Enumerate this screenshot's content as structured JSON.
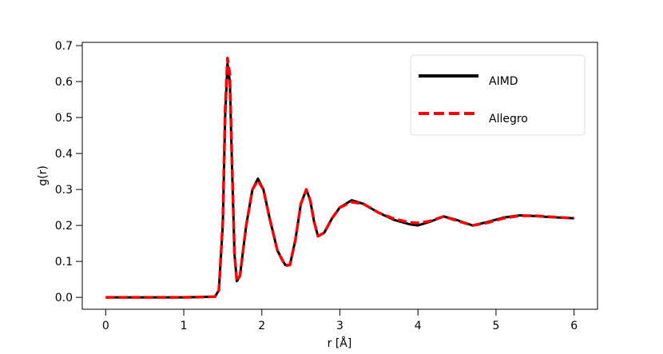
{
  "chart_data": {
    "type": "line",
    "xlabel": "r [Å]",
    "ylabel": "g(r)",
    "x": [
      0,
      0.5,
      1.0,
      1.4,
      1.45,
      1.5,
      1.53,
      1.56,
      1.59,
      1.62,
      1.65,
      1.68,
      1.72,
      1.8,
      1.88,
      1.95,
      2.02,
      2.1,
      2.2,
      2.3,
      2.36,
      2.43,
      2.5,
      2.57,
      2.62,
      2.67,
      2.72,
      2.8,
      2.9,
      3.0,
      3.15,
      3.3,
      3.5,
      3.7,
      3.9,
      4.0,
      4.15,
      4.33,
      4.5,
      4.7,
      4.9,
      5.1,
      5.3,
      5.5,
      5.7,
      6.0
    ],
    "series": [
      {
        "name": "AIMD",
        "color": "#000000",
        "dash": false,
        "values": [
          0,
          0,
          0,
          0.002,
          0.02,
          0.2,
          0.5,
          0.65,
          0.6,
          0.35,
          0.12,
          0.045,
          0.06,
          0.2,
          0.3,
          0.33,
          0.3,
          0.22,
          0.13,
          0.09,
          0.09,
          0.16,
          0.26,
          0.3,
          0.27,
          0.21,
          0.17,
          0.18,
          0.22,
          0.25,
          0.27,
          0.26,
          0.235,
          0.215,
          0.203,
          0.2,
          0.21,
          0.225,
          0.215,
          0.2,
          0.21,
          0.222,
          0.228,
          0.226,
          0.223,
          0.22
        ]
      },
      {
        "name": "Allegro",
        "color": "#ff0000",
        "dash": true,
        "values": [
          0,
          0,
          0,
          0.002,
          0.02,
          0.21,
          0.52,
          0.665,
          0.62,
          0.36,
          0.12,
          0.045,
          0.06,
          0.2,
          0.3,
          0.325,
          0.3,
          0.22,
          0.13,
          0.088,
          0.09,
          0.16,
          0.26,
          0.3,
          0.27,
          0.21,
          0.17,
          0.18,
          0.22,
          0.25,
          0.265,
          0.26,
          0.235,
          0.218,
          0.208,
          0.207,
          0.212,
          0.225,
          0.213,
          0.2,
          0.208,
          0.22,
          0.227,
          0.227,
          0.224,
          0.22
        ]
      }
    ],
    "xlim": [
      -0.3,
      6.3
    ],
    "xticks": [
      0,
      1,
      2,
      3,
      4,
      5,
      6
    ],
    "ylim": [
      -0.033,
      0.709
    ],
    "yticks": [
      {
        "value": 0,
        "label": "0.0"
      },
      0.1,
      0.2,
      0.3,
      0.4,
      0.5,
      0.6,
      0.7
    ],
    "legend": "upper right"
  }
}
